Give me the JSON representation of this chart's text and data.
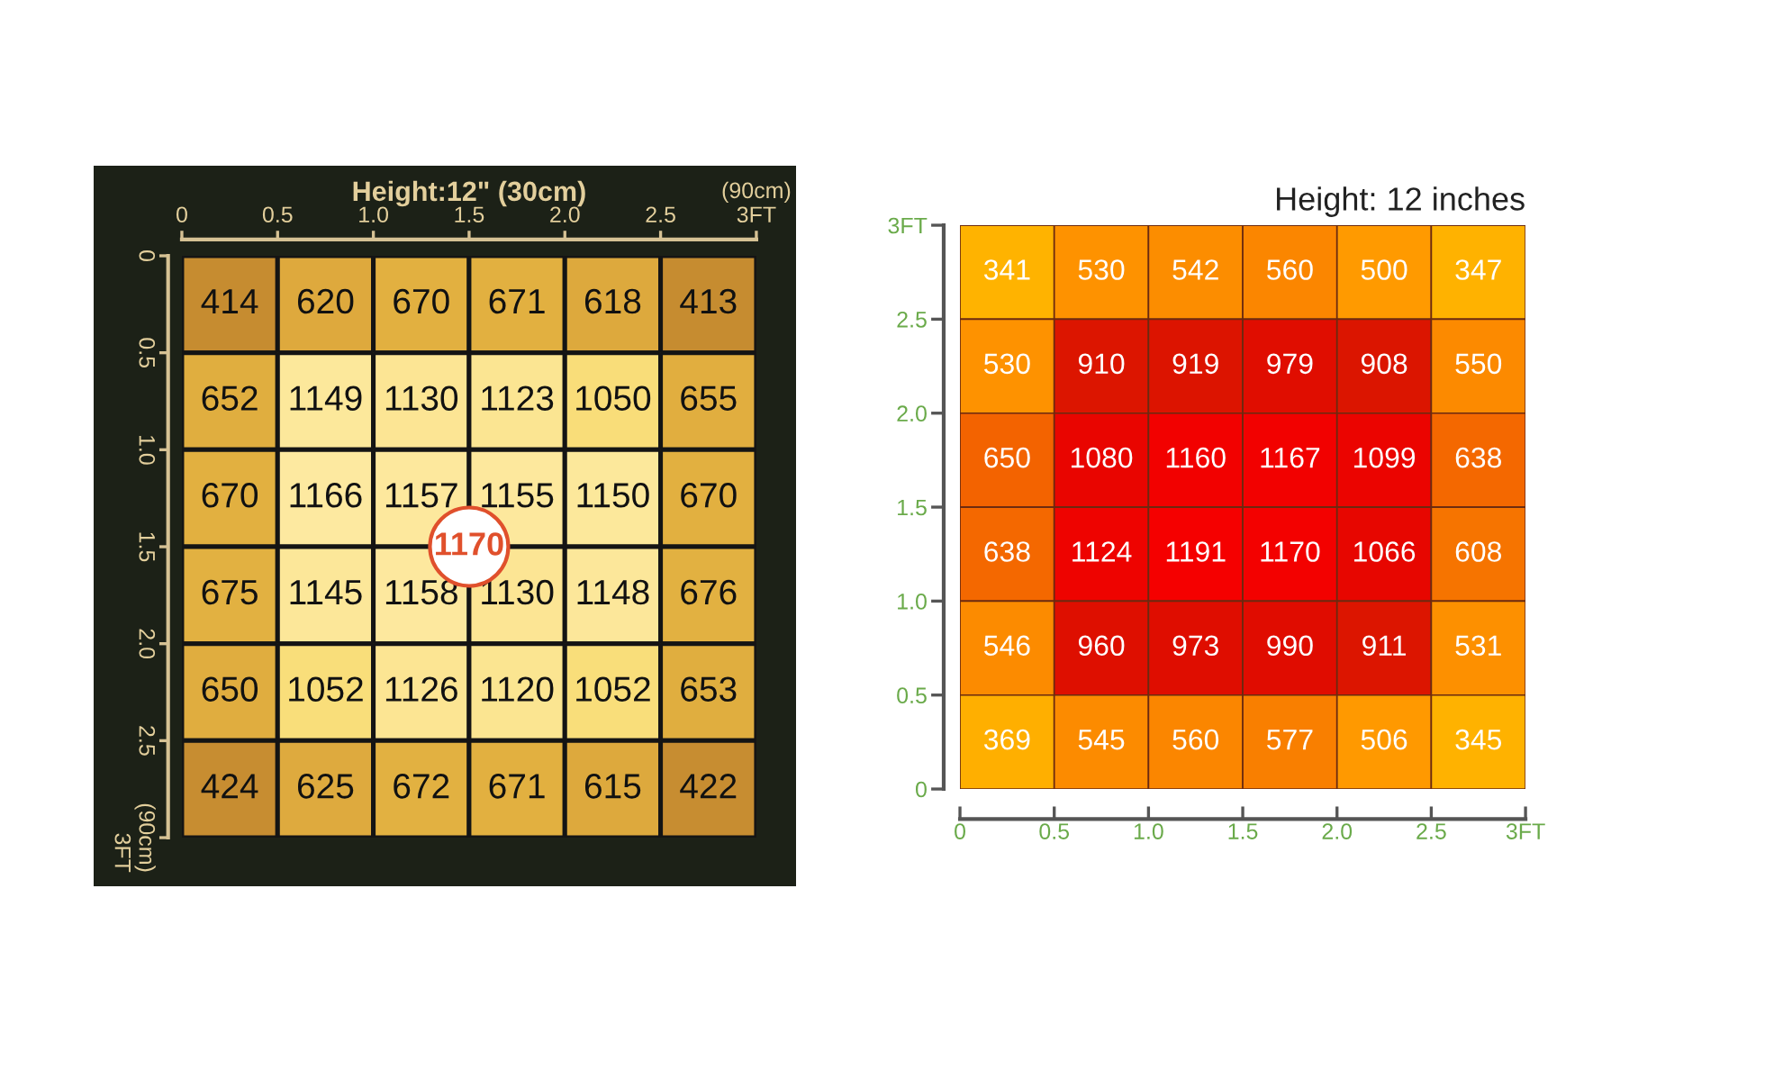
{
  "chart_data": [
    {
      "type": "heatmap",
      "title": "Height:12\" (30cm)",
      "xlim": [
        0,
        3
      ],
      "xticks": [
        0,
        0.5,
        {
          "value": 1,
          "label": "1.0"
        },
        1.5,
        {
          "value": 2,
          "label": "2.0"
        },
        2.5,
        {
          "value": 3,
          "label": "(90cm)\n3FT"
        }
      ],
      "ylim": [
        3,
        0
      ],
      "yticks": [
        0,
        0.5,
        {
          "value": 1,
          "label": "1.0"
        },
        1.5,
        {
          "value": 2,
          "label": "2.0"
        },
        2.5,
        {
          "value": 3,
          "label": "(90cm)\n3FT"
        }
      ],
      "cells": [
        [
          414,
          620,
          670,
          671,
          618,
          413
        ],
        [
          652,
          1149,
          1130,
          1123,
          1050,
          655
        ],
        [
          670,
          1166,
          1157,
          1155,
          1150,
          670
        ],
        [
          675,
          1145,
          1158,
          1130,
          1148,
          676
        ],
        [
          650,
          1052,
          1126,
          1120,
          1052,
          653
        ],
        [
          424,
          625,
          672,
          671,
          615,
          422
        ]
      ],
      "data_labels": true,
      "annotations": [
        {
          "text": "1170",
          "x": 1.5,
          "y": 1.5
        }
      ]
    },
    {
      "type": "heatmap",
      "title": "Height: 12 inches",
      "xlim": [
        0,
        3
      ],
      "xticks": [
        0,
        0.5,
        {
          "value": 1,
          "label": "1.0"
        },
        1.5,
        {
          "value": 2,
          "label": "2.0"
        },
        2.5,
        {
          "value": 3,
          "label": "3FT"
        }
      ],
      "ylim": [
        0,
        3
      ],
      "yticks": [
        0,
        0.5,
        {
          "value": 1,
          "label": "1.0"
        },
        1.5,
        {
          "value": 2,
          "label": "2.0"
        },
        2.5,
        {
          "value": 3,
          "label": "3FT"
        }
      ],
      "cells": [
        [
          341,
          530,
          542,
          560,
          500,
          347
        ],
        [
          530,
          910,
          919,
          979,
          908,
          550
        ],
        [
          650,
          1080,
          1160,
          1167,
          1099,
          638
        ],
        [
          638,
          1124,
          1191,
          1170,
          1066,
          608
        ],
        [
          546,
          960,
          973,
          990,
          911,
          531
        ],
        [
          369,
          545,
          560,
          577,
          506,
          345
        ]
      ],
      "data_labels": true
    }
  ]
}
